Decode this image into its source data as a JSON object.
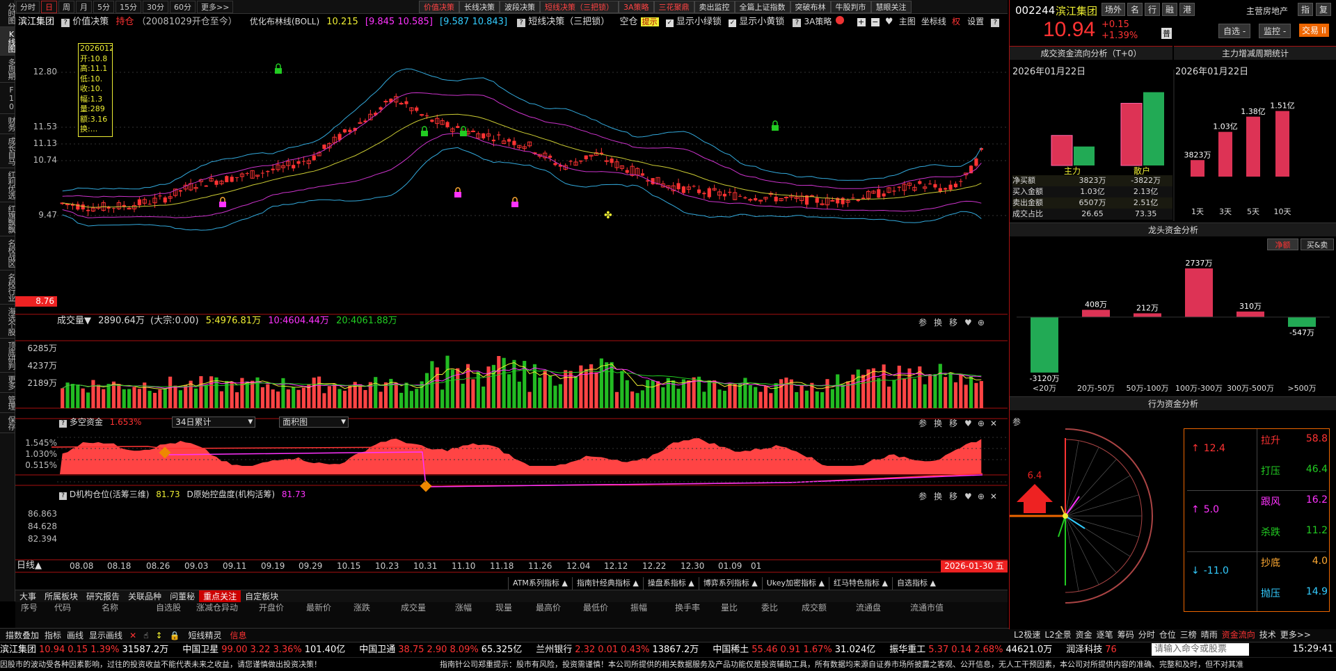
{
  "left_tabs": [
    "分时图",
    "K线图",
    "多周期",
    "F10",
    "财务",
    "成长自马",
    "红利优选",
    "红旗飘飘",
    "名校战区",
    "名校行业",
    "海选个股",
    "顶底研判",
    "更多",
    "管理",
    "保存"
  ],
  "top_periods": [
    "分时",
    "日",
    "周",
    "月",
    "5分",
    "15分",
    "30分",
    "60分",
    "更多>>"
  ],
  "top_strategies": [
    "价值决策",
    "长线决策",
    "波段决策",
    "短线决策（三把锁）",
    "3A策略",
    "三花聚鼎",
    "卖出监控",
    "全篇上证指数",
    "突破布林",
    "牛股判市",
    "慧眼关注"
  ],
  "info": {
    "stock_name": "滨江集团",
    "hold_label": "价值决策",
    "hold_val": "持仓",
    "since": "（20081029开仓至今）",
    "boll_label": "优化布林线(BOLL)",
    "boll_v1": "10.215",
    "boll_v2": "[9.845 10.585]",
    "boll_v3": "[9.587 10.843]",
    "short_label": "短线决策（三把锁）",
    "short_val": "空仓",
    "short_tag": "提示",
    "chk1": "显示小绿锁",
    "chk2": "显示小黄锁",
    "a3": "3A策略",
    "main_chart": "主图",
    "coord": "坐标线",
    "right_tag": "权",
    "settings": "设置"
  },
  "price_axis": [
    "12.80",
    "11.53",
    "11.13",
    "10.74",
    "9.47"
  ],
  "price_low_tag": "8.76",
  "tooltip": {
    "date": "2026012",
    "rows": [
      "开:10.8",
      "高:11.1",
      "低:10.",
      "收:10.",
      "幅:1.3",
      "量:289",
      "额:3.16",
      "换:..."
    ]
  },
  "volume": {
    "label": "成交量▼",
    "val": "2890.64万",
    "big": "(大宗:0.00)",
    "ma5": "5:4976.81万",
    "ma10": "10:4604.44万",
    "ma20": "20:4061.88万",
    "axis": [
      "6285万",
      "4237万",
      "2189万"
    ]
  },
  "dk": {
    "label": "多空资金",
    "val": "1.653%",
    "dd1": "34日累计",
    "dd2": "面积图",
    "axis": [
      "1.545%",
      "1.030%",
      "0.515%"
    ]
  },
  "jg": {
    "label": "D机构仓位(活筹三维)",
    "val": "81.73",
    "label2": "D原始控盘度(机构活筹)",
    "val2": "81.73",
    "axis": [
      "86.863",
      "84.628",
      "82.394"
    ]
  },
  "date_axis": [
    "08.08",
    "08.18",
    "08.26",
    "09.03",
    "09.11",
    "09.19",
    "09.29",
    "10.15",
    "10.23",
    "10.31",
    "11.10",
    "11.18",
    "11.26",
    "12.04",
    "12.12",
    "12.22",
    "12.30",
    "01.09",
    "01"
  ],
  "date_current": "2026-01-30 五",
  "dayline": "日线▲",
  "panel_icons": [
    "参",
    "换",
    "移"
  ],
  "ind_buttons": [
    "ATM系列指标 ▲",
    "指南针经典指标 ▲",
    "操盘系指标 ▲",
    "博弈系列指标 ▲",
    "Ukey加密指标 ▲",
    "红马特色指标 ▲",
    "自选指标 ▲"
  ],
  "bottom_tabs": [
    "大事",
    "所属板块",
    "研究报告",
    "关联品种",
    "问董秘",
    "重点关注",
    "自定板块"
  ],
  "table_cols": [
    "序号",
    "代码",
    "名称",
    "自选股",
    "涨减仓异动",
    "开盘价",
    "最新价",
    "涨跌",
    "成交量",
    "涨幅",
    "现量",
    "最高价",
    "最低价",
    "振幅",
    "换手率",
    "量比",
    "委比",
    "成交额",
    "流通盘",
    "流通市值"
  ],
  "tool_row": [
    "描数叠加",
    "指标",
    "画线",
    "显示画线"
  ],
  "tool_row2": [
    "短线精灵",
    "信息"
  ],
  "right_tabs_bottom": [
    "L2极速",
    "L2全景",
    "资金",
    "逐笔",
    "筹码",
    "分时",
    "仓位",
    "三榜",
    "晴雨",
    "资金流向",
    "技术",
    "更多>>"
  ],
  "quote": {
    "code": "002244",
    "name": "滨江集团",
    "price": "10.94",
    "chg": "+0.15",
    "pct": "+1.39%",
    "sector": "主营房地产",
    "tags": [
      "场外",
      "名",
      "行",
      "融",
      "港"
    ],
    "btns": [
      "指",
      "复"
    ],
    "fav": "自选 -",
    "mon": "监控 -",
    "trade": "交易 ⅠⅠ",
    "badge": "普"
  },
  "fund_flow": {
    "title": "成交资金流向分析（T+0）",
    "date": "2026年01月22日",
    "bars": [
      {
        "name": "主力",
        "in": 1.03,
        "out": 0.65
      },
      {
        "name": "散户",
        "in": 2.13,
        "out": 2.51
      }
    ],
    "rows": [
      [
        "净买额",
        "3823万",
        "-3822万"
      ],
      [
        "买入金额",
        "1.03亿",
        "2.13亿"
      ],
      [
        "卖出金额",
        "6507万",
        "2.51亿"
      ],
      [
        "成交占比",
        "26.65",
        "73.35"
      ]
    ]
  },
  "cycle": {
    "title": "主力增减周期统计",
    "date": "2026年01月22日",
    "periods": [
      "1天",
      "3天",
      "5天",
      "10天"
    ],
    "values": [
      "3823万",
      "1.03亿",
      "1.38亿",
      "1.51亿"
    ],
    "nums": [
      0.38,
      1.03,
      1.38,
      1.51
    ]
  },
  "dragon": {
    "title": "龙头资金分析",
    "btn1": "净额",
    "btn2": "买&卖",
    "cats": [
      "<20万",
      "20万-50万",
      "50万-100万",
      "100万-300万",
      "300万-500万",
      ">500万"
    ],
    "labels": [
      "-3120万",
      "408万",
      "212万",
      "2737万",
      "310万",
      "-547万"
    ],
    "nums": [
      -3120,
      408,
      212,
      2737,
      310,
      -547
    ]
  },
  "behav": {
    "title": "行为资金分析",
    "arrow_val": "6.4",
    "up": "12.4",
    "mid": "5.0",
    "down": "-11.0",
    "can": "参",
    "items": [
      {
        "k": "拉升",
        "v": "58.8",
        "c": "#f33"
      },
      {
        "k": "打压",
        "v": "46.4",
        "c": "#2c2"
      },
      {
        "k": "跟风",
        "v": "16.2",
        "c": "#f3f"
      },
      {
        "k": "杀跌",
        "v": "11.2",
        "c": "#2c2"
      },
      {
        "k": "抄底",
        "v": "4.0",
        "c": "#fa3"
      },
      {
        "k": "抛压",
        "v": "14.9",
        "c": "#3cf"
      }
    ]
  },
  "ticker": [
    {
      "n": "滨江集团",
      "p": "10.94",
      "c": "0.15",
      "pct": "1.39%",
      "a": "31587.2万",
      "up": true
    },
    {
      "n": "中国卫星",
      "p": "99.00",
      "c": "3.22",
      "pct": "3.36%",
      "a": "101.40亿",
      "up": true
    },
    {
      "n": "中国卫通",
      "p": "38.75",
      "c": "2.90",
      "pct": "8.09%",
      "a": "65.325亿",
      "up": true
    },
    {
      "n": "兰州银行",
      "p": "2.32",
      "c": "0.01",
      "pct": "0.43%",
      "a": "13867.2万",
      "up": true
    },
    {
      "n": "中国稀土",
      "p": "55.46",
      "c": "0.91",
      "pct": "1.67%",
      "a": "31.024亿",
      "up": true
    },
    {
      "n": "振华重工",
      "p": "5.37",
      "c": "0.14",
      "pct": "2.68%",
      "a": "44621.0万",
      "up": true
    },
    {
      "n": "润泽科技",
      "p": "76",
      "c": "",
      "pct": "",
      "a": "",
      "up": true
    }
  ],
  "cmd_placeholder": "请输入命令或股票",
  "clock": "15:29:41",
  "notice_left": "因股市的波动受各种因素影响，过往的投资收益不能代表未来之收益，请您谨慎做出投资决策！",
  "notice_right": "指南针公司郑重提示：股市有风险，投资需谨慎！本公司所提供的相关数据服务及产品功能仅是投资辅助工具，所有数据均来源自证券市场所披露之客观、公开信息，无人工干预因素，本公司对所提供内容的准确、完整和及时，但不对其准"
}
